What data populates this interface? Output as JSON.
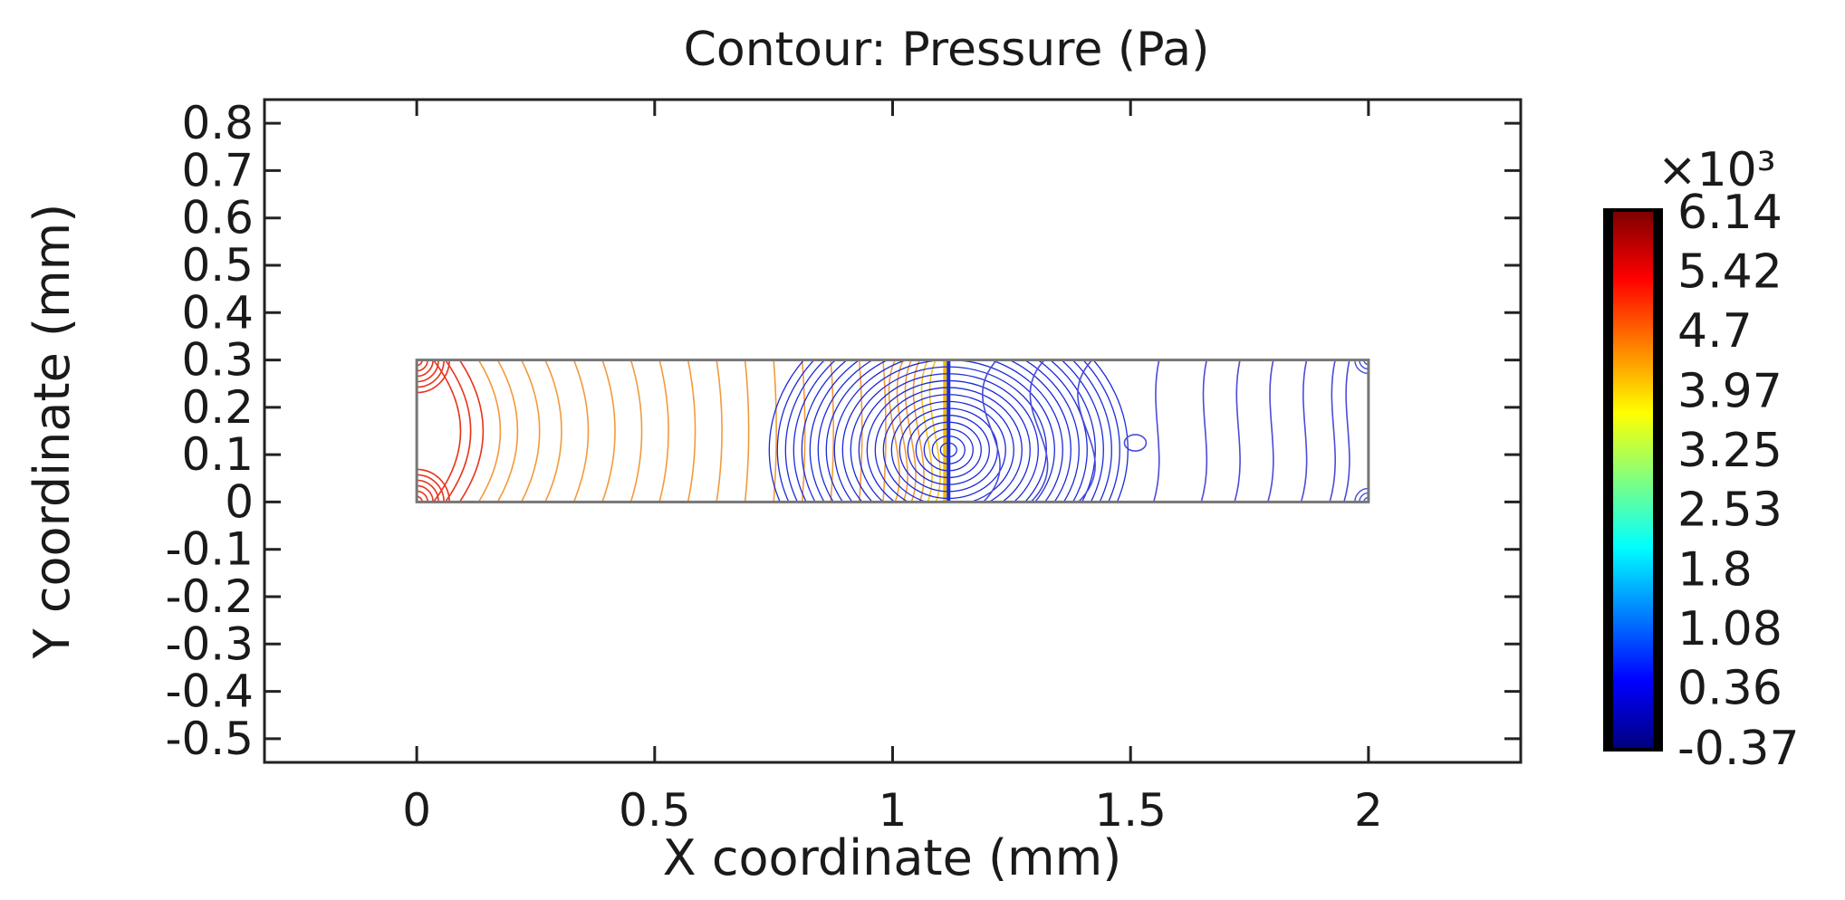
{
  "chart_data": {
    "type": "contour",
    "title": "Contour: Pressure (Pa)",
    "xlabel": "X coordinate (mm)",
    "ylabel": "Y coordinate (mm)",
    "xlim": [
      -0.32,
      2.32
    ],
    "ylim": [
      -0.55,
      0.85
    ],
    "x_ticks": [
      0,
      0.5,
      1,
      1.5,
      2
    ],
    "x_tick_labels": [
      "0",
      "0.5",
      "1",
      "1.5",
      "2"
    ],
    "y_ticks": [
      0.8,
      0.7,
      0.6,
      0.5,
      0.4,
      0.3,
      0.2,
      0.1,
      0,
      -0.1,
      -0.2,
      -0.3,
      -0.4,
      -0.5
    ],
    "y_tick_labels": [
      "0.8",
      "0.7",
      "0.6",
      "0.5",
      "0.4",
      "0.3",
      "0.2",
      "0.1",
      "0",
      "-0.1",
      "-0.2",
      "-0.3",
      "-0.4",
      "-0.5"
    ],
    "domain": {
      "x": [
        0,
        2
      ],
      "y": [
        0,
        0.3
      ]
    },
    "interface_x": 1.11,
    "left_region": {
      "pressure_range": [
        4.2,
        6.14
      ],
      "line_color": "#f39a3a",
      "hot_color": "#e8341c",
      "contour_x": [
        0.035,
        0.06,
        0.09,
        0.13,
        0.17,
        0.22,
        0.27,
        0.33,
        0.39,
        0.45,
        0.51,
        0.57,
        0.63,
        0.69,
        0.75,
        0.81,
        0.87,
        0.93,
        0.98
      ]
    },
    "right_region": {
      "pressure_range": [
        -0.37,
        1.2
      ],
      "line_color": "#4b4bd8",
      "dense_color": "#1a2ad8",
      "contour_x": [
        1.2,
        1.3,
        1.4,
        1.56,
        1.66,
        1.73,
        1.8,
        1.87,
        1.93,
        1.96
      ]
    },
    "colorbar": {
      "multiplier": "×10³",
      "tick_labels": [
        "6.14",
        "5.42",
        "4.7",
        "3.97",
        "3.25",
        "2.53",
        "1.8",
        "1.08",
        "0.36",
        "-0.37"
      ],
      "tick_values": [
        6.14,
        5.42,
        4.7,
        3.97,
        3.25,
        2.53,
        1.8,
        1.08,
        0.36,
        -0.37
      ],
      "range": [
        -0.37,
        6.14
      ],
      "colors": [
        "#00007f",
        "#0000ff",
        "#0080ff",
        "#00ffff",
        "#80ff80",
        "#ffff00",
        "#ff8000",
        "#ff0000",
        "#7f0000"
      ]
    }
  }
}
